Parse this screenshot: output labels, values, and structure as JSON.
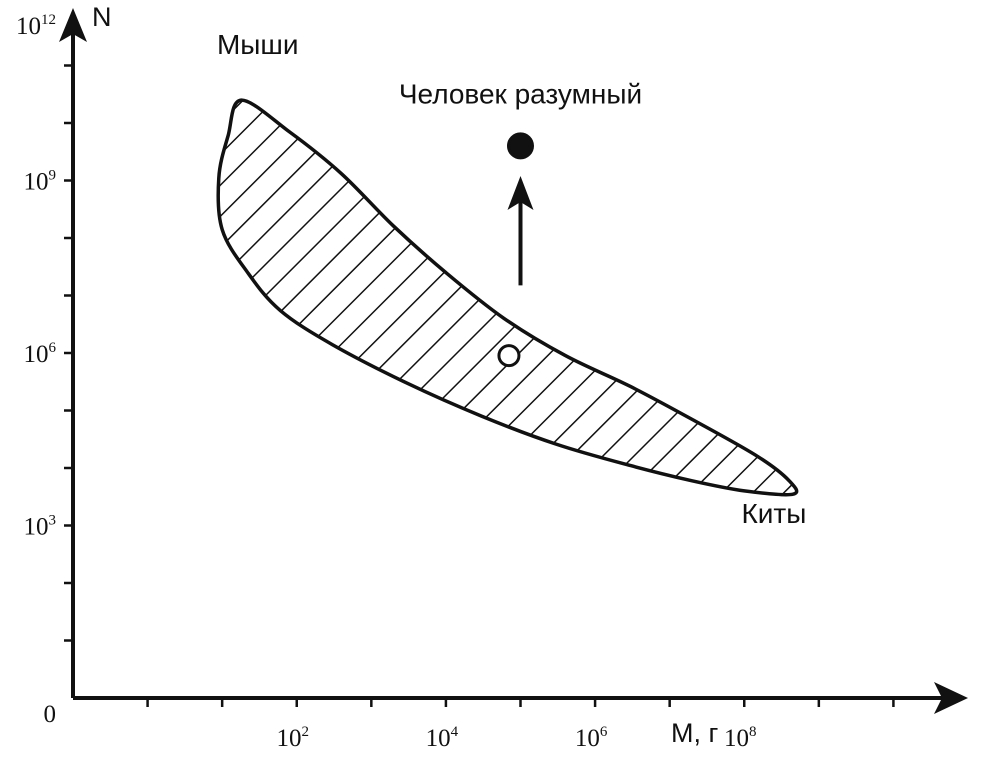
{
  "chart_data": {
    "type": "area",
    "xlabel": "M, г",
    "ylabel": "N",
    "x_scale": "log",
    "y_scale": "log",
    "xlim": [
      0.1,
      100000000000.0
    ],
    "ylim": [
      1,
      1000000000000.0
    ],
    "x_ticks": [
      {
        "base": "10",
        "exp": "2",
        "value": 100.0
      },
      {
        "base": "10",
        "exp": "4",
        "value": 10000.0
      },
      {
        "base": "10",
        "exp": "6",
        "value": 1000000.0
      },
      {
        "base": "10",
        "exp": "8",
        "value": 100000000.0
      }
    ],
    "y_ticks": [
      {
        "base": "0",
        "exp": "",
        "value": 1
      },
      {
        "base": "10",
        "exp": "3",
        "value": 1000.0
      },
      {
        "base": "10",
        "exp": "6",
        "value": 1000000.0
      },
      {
        "base": "10",
        "exp": "9",
        "value": 1000000000.0
      },
      {
        "base": "10",
        "exp": "12",
        "value": 1000000000000.0
      }
    ],
    "region": {
      "fill": "hatched",
      "boundary": [
        {
          "x": 18,
          "y": 25000000000.0
        },
        {
          "x": 80,
          "y": 7000000000.0
        },
        {
          "x": 400,
          "y": 1300000000.0
        },
        {
          "x": 2000,
          "y": 160000000.0
        },
        {
          "x": 10000.0,
          "y": 25000000.0
        },
        {
          "x": 60000.0,
          "y": 4000000.0
        },
        {
          "x": 400000.0,
          "y": 900000.0
        },
        {
          "x": 3000000.0,
          "y": 260000.0
        },
        {
          "x": 20000000.0,
          "y": 70000.0
        },
        {
          "x": 150000000.0,
          "y": 16000.0
        },
        {
          "x": 400000000.0,
          "y": 6000.0
        },
        {
          "x": 450000000.0,
          "y": 3500.0
        },
        {
          "x": 100000000.0,
          "y": 4000.0
        },
        {
          "x": 20000000.0,
          "y": 6000.0
        },
        {
          "x": 3000000.0,
          "y": 11000.0
        },
        {
          "x": 300000.0,
          "y": 26000.0
        },
        {
          "x": 30000.0,
          "y": 80000.0
        },
        {
          "x": 3000,
          "y": 300000.0
        },
        {
          "x": 300,
          "y": 1400000.0
        },
        {
          "x": 60,
          "y": 5500000.0
        },
        {
          "x": 22,
          "y": 25000000.0
        },
        {
          "x": 10,
          "y": 140000000.0
        },
        {
          "x": 9,
          "y": 1100000000.0
        },
        {
          "x": 12,
          "y": 6000000000.0
        }
      ]
    },
    "points": [
      {
        "name": "expected-human",
        "x": 70000.0,
        "y": 900000.0,
        "style": "open-circle"
      },
      {
        "name": "homo-sapiens",
        "x": 100000.0,
        "y": 4000000000.0,
        "style": "filled-circle"
      }
    ],
    "arrow": {
      "from": {
        "x": 100000.0,
        "y": 15000000.0
      },
      "to": {
        "x": 100000.0,
        "y": 1200000000.0
      }
    },
    "annotations": [
      {
        "id": "mice",
        "text": "Мыши",
        "x": 30,
        "y": 160000000000.0
      },
      {
        "id": "human",
        "text": "Человек  разумный",
        "x": 100000.0,
        "y": 22000000000.0
      },
      {
        "id": "whales",
        "text": "Киты",
        "x": 250000000.0,
        "y": 1100.0
      }
    ],
    "grid": false,
    "legend": "none"
  }
}
